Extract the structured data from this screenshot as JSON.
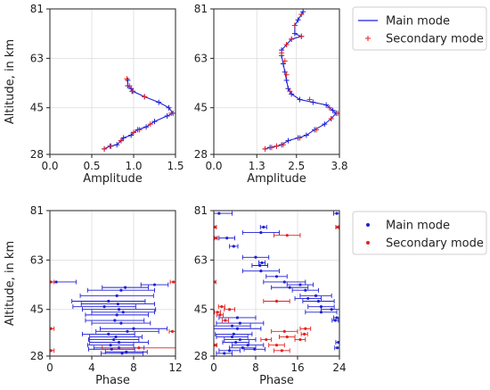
{
  "colors": {
    "main": "#1f1fd6",
    "secondary": "#e52020",
    "axis": "#222222",
    "grid": "#dcdcdc"
  },
  "legends": [
    {
      "position": "top-right",
      "entries": [
        {
          "label": "Main mode",
          "marker": "line",
          "series": "main"
        },
        {
          "label": "Secondary mode",
          "marker": "plus",
          "series": "secondary"
        }
      ]
    },
    {
      "position": "bottom-right",
      "entries": [
        {
          "label": "Main mode",
          "marker": "dot",
          "series": "main"
        },
        {
          "label": "Secondary mode",
          "marker": "dot",
          "series": "secondary"
        }
      ]
    }
  ],
  "chart_data": [
    {
      "type": "line",
      "xlabel": "Amplitude",
      "ylabel": "Altitude, in km",
      "xlim": [
        0,
        1.5
      ],
      "ylim": [
        28,
        81
      ],
      "xticks": [
        0,
        0.5,
        1,
        1.5
      ],
      "xticklabels": [
        "0.0",
        "0.5",
        "1.0",
        "1.5"
      ],
      "yticks": [
        28,
        45,
        63,
        81
      ],
      "yticklabels": [
        "28",
        "45",
        "63",
        "81"
      ],
      "grid": true,
      "series": [
        {
          "name": "Main mode",
          "style": "line",
          "points": [
            [
              0.65,
              30
            ],
            [
              0.72,
              31
            ],
            [
              0.8,
              31.5
            ],
            [
              0.85,
              33
            ],
            [
              0.88,
              34
            ],
            [
              0.97,
              35
            ],
            [
              1.0,
              36
            ],
            [
              1.05,
              37
            ],
            [
              1.15,
              38
            ],
            [
              1.25,
              40
            ],
            [
              1.4,
              42
            ],
            [
              1.47,
              43
            ],
            [
              1.42,
              45
            ],
            [
              1.3,
              47
            ],
            [
              1.13,
              49
            ],
            [
              0.99,
              51
            ],
            [
              0.97,
              52
            ],
            [
              0.93,
              53
            ],
            [
              0.93,
              55
            ]
          ]
        },
        {
          "name": "Secondary mode",
          "style": "plus",
          "points": [
            [
              0.65,
              30
            ],
            [
              0.73,
              31
            ],
            [
              0.85,
              33
            ],
            [
              1.0,
              36
            ],
            [
              1.07,
              37
            ],
            [
              1.2,
              39
            ],
            [
              1.45,
              43
            ],
            [
              1.13,
              49
            ],
            [
              0.98,
              51
            ],
            [
              0.95,
              53
            ],
            [
              0.92,
              55.5
            ]
          ]
        }
      ]
    },
    {
      "type": "line",
      "xlabel": "Amplitude",
      "ylabel": "",
      "xlim": [
        0,
        3.8
      ],
      "ylim": [
        28,
        81
      ],
      "xticks": [
        0,
        1.3,
        2.5,
        3.8
      ],
      "xticklabels": [
        "0.0",
        "1.3",
        "2.5",
        "3.8"
      ],
      "yticks": [
        28,
        45,
        63,
        81
      ],
      "yticklabels": [
        "28",
        "45",
        "63",
        "81"
      ],
      "grid": true,
      "series": [
        {
          "name": "Main mode",
          "style": "line",
          "points": [
            [
              1.55,
              30
            ],
            [
              1.7,
              30.5
            ],
            [
              1.9,
              31
            ],
            [
              2.05,
              31.5
            ],
            [
              2.25,
              33
            ],
            [
              2.55,
              34
            ],
            [
              2.8,
              35
            ],
            [
              3.05,
              37
            ],
            [
              3.35,
              39
            ],
            [
              3.55,
              41
            ],
            [
              3.7,
              43
            ],
            [
              3.6,
              44
            ],
            [
              3.4,
              46
            ],
            [
              3.0,
              47
            ],
            [
              2.6,
              48
            ],
            [
              2.35,
              50
            ],
            [
              2.25,
              52
            ],
            [
              2.2,
              55
            ],
            [
              2.15,
              58
            ],
            [
              2.1,
              61
            ],
            [
              2.05,
              64
            ],
            [
              2.05,
              66
            ],
            [
              2.2,
              68
            ],
            [
              2.35,
              70
            ],
            [
              2.65,
              71
            ],
            [
              2.45,
              72
            ],
            [
              2.45,
              75
            ],
            [
              2.55,
              77
            ],
            [
              2.7,
              80
            ]
          ]
        },
        {
          "name": "Secondary mode",
          "style": "plus",
          "points": [
            [
              1.55,
              30
            ],
            [
              1.75,
              30.5
            ],
            [
              1.9,
              31
            ],
            [
              2.1,
              31.5
            ],
            [
              2.6,
              34
            ],
            [
              3.1,
              37
            ],
            [
              3.55,
              41
            ],
            [
              3.75,
              43
            ],
            [
              3.5,
              45
            ],
            [
              2.9,
              48
            ],
            [
              2.3,
              51
            ],
            [
              2.2,
              57
            ],
            [
              2.15,
              62
            ],
            [
              2.05,
              65
            ],
            [
              2.2,
              68
            ],
            [
              2.35,
              70
            ],
            [
              2.65,
              71
            ],
            [
              2.45,
              75
            ],
            [
              2.65,
              79
            ]
          ]
        }
      ]
    },
    {
      "type": "scatter",
      "xlabel": "Phase",
      "ylabel": "Altitude, in km",
      "xlim": [
        0,
        12
      ],
      "ylim": [
        28,
        81
      ],
      "xticks": [
        0,
        4,
        8,
        12
      ],
      "xticklabels": [
        "0",
        "4",
        "8",
        "12"
      ],
      "yticks": [
        28,
        45,
        63,
        81
      ],
      "yticklabels": [
        "28",
        "45",
        "63",
        "81"
      ],
      "grid": true,
      "series": [
        {
          "name": "Main mode",
          "style": "dot-errorbar",
          "points": [
            [
              0.6,
              55,
              1.9
            ],
            [
              10.0,
              54,
              1.3
            ],
            [
              7.2,
              53,
              2.2
            ],
            [
              6.8,
              52,
              3.2
            ],
            [
              6.4,
              50,
              3.5
            ],
            [
              5.6,
              48,
              3.5
            ],
            [
              6.5,
              47,
              3.5
            ],
            [
              5.2,
              46,
              3.0
            ],
            [
              6.6,
              45,
              3.5
            ],
            [
              7.0,
              44,
              3.0
            ],
            [
              6.4,
              43,
              3.0
            ],
            [
              6.2,
              41,
              2.8
            ],
            [
              6.8,
              40,
              2.8
            ],
            [
              8.0,
              38,
              3.2
            ],
            [
              7.4,
              37,
              3.0
            ],
            [
              5.6,
              36,
              2.5
            ],
            [
              6.3,
              35,
              2.5
            ],
            [
              6.1,
              34,
              2.4
            ],
            [
              6.6,
              33,
              2.8
            ],
            [
              5.8,
              32,
              2.2
            ],
            [
              6.6,
              31,
              2.4
            ],
            [
              5.9,
              30.5,
              2.2
            ],
            [
              7.3,
              29.5,
              2.0
            ],
            [
              6.9,
              29,
              2.0
            ]
          ]
        },
        {
          "name": "Secondary mode",
          "style": "dot-errorbar",
          "points": [
            [
              0.1,
              55,
              0.3
            ],
            [
              11.8,
              55,
              0.3
            ],
            [
              0.1,
              38,
              0.3
            ],
            [
              11.7,
              37,
              0.3
            ],
            [
              8.5,
              31,
              3.5
            ],
            [
              0.1,
              30,
              0.3
            ]
          ]
        }
      ]
    },
    {
      "type": "scatter",
      "xlabel": "Phase",
      "ylabel": "",
      "xlim": [
        0,
        24
      ],
      "ylim": [
        28,
        81
      ],
      "xticks": [
        0,
        8,
        16,
        24
      ],
      "xticklabels": [
        "0",
        "8",
        "16",
        "24"
      ],
      "yticks": [
        28,
        45,
        63,
        81
      ],
      "yticklabels": [
        "28",
        "45",
        "63",
        "81"
      ],
      "grid": true,
      "series": [
        {
          "name": "Main mode",
          "style": "dot-errorbar",
          "points": [
            [
              1.0,
              80,
              2.5
            ],
            [
              23.5,
              80,
              0.6
            ],
            [
              9.5,
              75,
              0.6
            ],
            [
              9.0,
              73,
              3.5
            ],
            [
              2.5,
              71,
              1.5
            ],
            [
              3.8,
              68,
              0.8
            ],
            [
              8.0,
              64,
              2.5
            ],
            [
              9.2,
              62,
              0.6
            ],
            [
              8.8,
              61,
              1.5
            ],
            [
              9.0,
              59,
              3.5
            ],
            [
              12.0,
              57,
              2.0
            ],
            [
              13.5,
              55,
              4.0
            ],
            [
              16.5,
              54,
              2.5
            ],
            [
              14.5,
              53,
              3.5
            ],
            [
              17.5,
              52,
              2.5
            ],
            [
              19.5,
              50,
              3.0
            ],
            [
              18.0,
              49,
              2.5
            ],
            [
              20.0,
              48,
              3.0
            ],
            [
              20.5,
              46,
              2.5
            ],
            [
              22.5,
              45,
              2.0
            ],
            [
              20.5,
              44,
              3.0
            ],
            [
              23.5,
              42,
              0.6
            ],
            [
              23.2,
              41,
              0.6
            ],
            [
              4.5,
              42,
              3.5
            ],
            [
              5.0,
              40,
              4.5
            ],
            [
              3.5,
              39,
              3.5
            ],
            [
              4.5,
              38,
              4.5
            ],
            [
              3.8,
              36,
              3.5
            ],
            [
              3.5,
              35,
              3.0
            ],
            [
              5.0,
              34,
              3.0
            ],
            [
              4.2,
              33,
              2.5
            ],
            [
              6.5,
              32,
              3.0
            ],
            [
              5.5,
              31,
              2.5
            ],
            [
              3.0,
              30,
              2.0
            ],
            [
              2.0,
              29,
              1.5
            ],
            [
              23.8,
              33,
              0.5
            ],
            [
              23.6,
              31,
              0.5
            ],
            [
              7.8,
              30.5,
              2.0
            ]
          ]
        },
        {
          "name": "Secondary mode",
          "style": "dot-errorbar",
          "points": [
            [
              0.2,
              75,
              0.3
            ],
            [
              23.6,
              75,
              0.3
            ],
            [
              14.0,
              72,
              2.5
            ],
            [
              0.4,
              71,
              0.3
            ],
            [
              0.1,
              55,
              0.3
            ],
            [
              12.0,
              48,
              2.5
            ],
            [
              1.5,
              46,
              0.6
            ],
            [
              3.0,
              45,
              1.0
            ],
            [
              0.7,
              44,
              0.6
            ],
            [
              1.2,
              43,
              0.6
            ],
            [
              2.2,
              41,
              0.6
            ],
            [
              17.5,
              38,
              1.0
            ],
            [
              13.5,
              37,
              2.5
            ],
            [
              17.3,
              36,
              0.6
            ],
            [
              14.0,
              35,
              1.5
            ],
            [
              10.0,
              34,
              1.0
            ],
            [
              12.0,
              32,
              1.5
            ],
            [
              16.5,
              34,
              1.0
            ],
            [
              0.3,
              32,
              0.3
            ],
            [
              13.0,
              30,
              1.5
            ]
          ]
        }
      ]
    }
  ]
}
